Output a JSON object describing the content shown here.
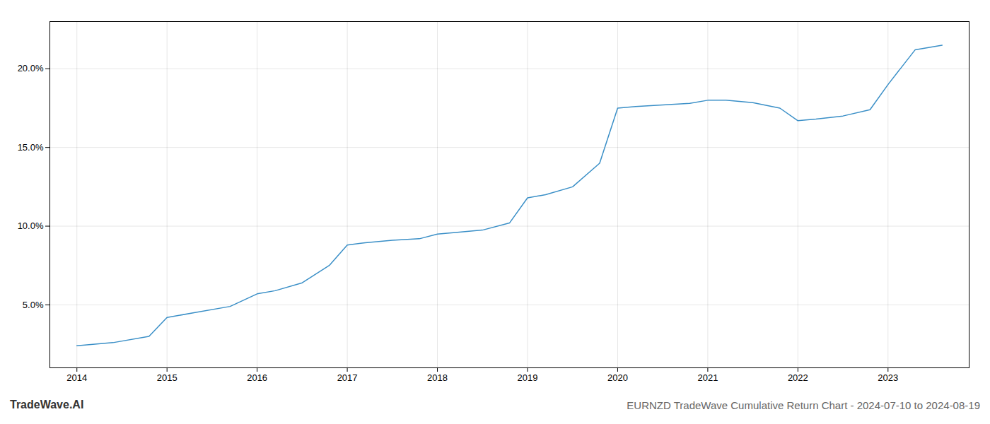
{
  "chart_data": {
    "type": "line",
    "title": "EURNZD TradeWave Cumulative Return Chart - 2024-07-10 to 2024-08-19",
    "annotations": [
      "TradeWave.AI"
    ],
    "x": [
      2014,
      2014.4,
      2014.8,
      2015.0,
      2015.3,
      2015.7,
      2016.0,
      2016.2,
      2016.5,
      2016.8,
      2017.0,
      2017.2,
      2017.5,
      2017.8,
      2018.0,
      2018.2,
      2018.5,
      2018.8,
      2019.0,
      2019.2,
      2019.5,
      2019.8,
      2020.0,
      2020.2,
      2020.5,
      2020.8,
      2021.0,
      2021.2,
      2021.5,
      2021.8,
      2022.0,
      2022.2,
      2022.5,
      2022.8,
      2023.0,
      2023.3,
      2023.6
    ],
    "values": [
      2.4,
      2.6,
      3.0,
      4.2,
      4.5,
      4.9,
      5.7,
      5.9,
      6.4,
      7.5,
      8.8,
      8.95,
      9.1,
      9.2,
      9.5,
      9.6,
      9.75,
      10.2,
      11.8,
      12.0,
      12.5,
      14.0,
      17.5,
      17.6,
      17.7,
      17.8,
      18.0,
      18.0,
      17.85,
      17.5,
      16.7,
      16.8,
      17.0,
      17.4,
      19.0,
      21.2,
      21.5
    ],
    "color": "#3a8fc7",
    "xlim": [
      2013.7,
      2023.9
    ],
    "xticks": [
      2014,
      2015,
      2016,
      2017,
      2018,
      2019,
      2020,
      2021,
      2022,
      2023
    ],
    "ylim": [
      1.0,
      23.0
    ],
    "yticks": [
      {
        "value": 5.0,
        "label": "5.0%"
      },
      {
        "value": 10.0,
        "label": "10.0%"
      },
      {
        "value": 15.0,
        "label": "15.0%"
      },
      {
        "value": 20.0,
        "label": "20.0%"
      }
    ],
    "grid": true
  }
}
